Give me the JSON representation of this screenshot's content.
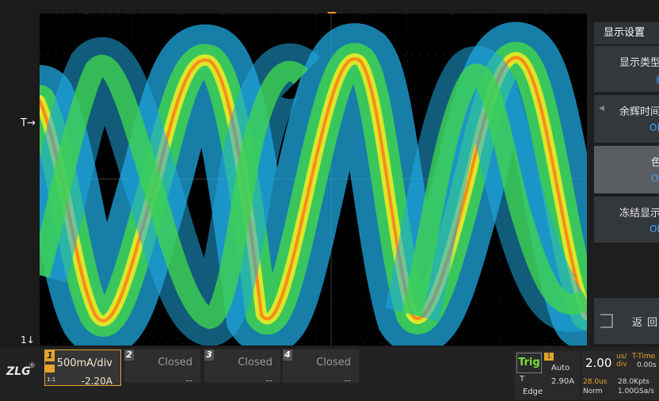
{
  "display_menu": {
    "title": "显示设置",
    "items": [
      {
        "label": "显示类型",
        "value": "线"
      },
      {
        "label": "余辉时间",
        "value": "OFF"
      },
      {
        "label": "色温",
        "value": "ON"
      },
      {
        "label": "冻结显示",
        "value": "OFF"
      }
    ],
    "back_label": "返回"
  },
  "plot": {
    "trigger_marker": "T→",
    "ground_marker": "1↓"
  },
  "logo": {
    "text": "ZLG",
    "registered": "®"
  },
  "channels": [
    {
      "number": "1",
      "scale": "500mA/div",
      "offset": "-2.20A",
      "ratio": "1:1"
    },
    {
      "number": "2",
      "scale": "Closed",
      "offset": "--"
    },
    {
      "number": "3",
      "scale": "Closed",
      "offset": "--"
    },
    {
      "number": "4",
      "scale": "Closed",
      "offset": "--"
    }
  ],
  "trigger": {
    "label": "Trig",
    "source": "1",
    "mode": "Auto",
    "type_label": "T",
    "level": "2.90A",
    "type": "Edge"
  },
  "timebase": {
    "scale": "2.00",
    "unit_top": "us/",
    "unit_bottom": "div",
    "mode_label": "T-Time",
    "time_value": "0.00s",
    "position": "28.0us",
    "memory": "28.0Kpts",
    "acq_mode": "Norm",
    "sample_rate": "1.00GSa/s"
  },
  "colors": {
    "accent": "#e6a42a",
    "trig_green": "#7de23a",
    "value_blue": "#3fa6ff"
  }
}
